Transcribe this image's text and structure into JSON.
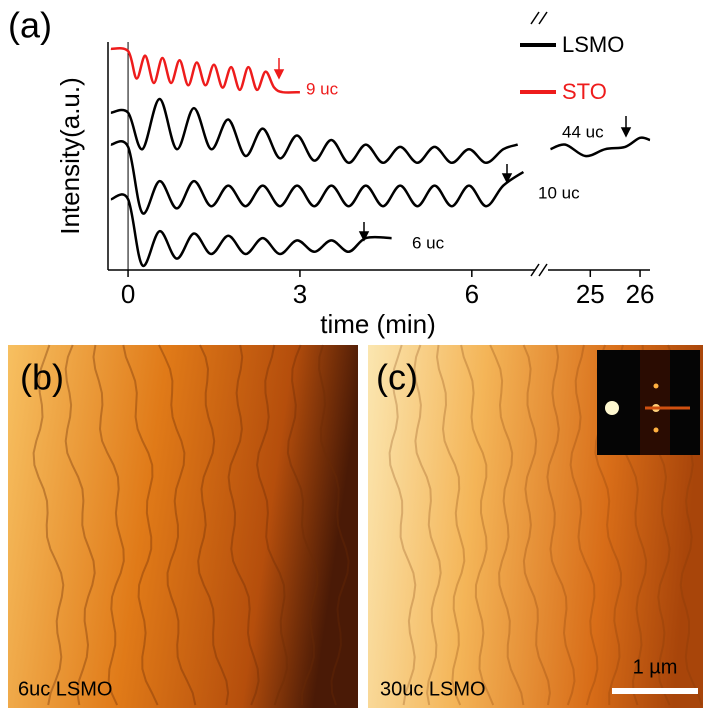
{
  "panel_label": "(a)",
  "chart_data": {
    "type": "line",
    "ylabel": "Intensity(a.u.)",
    "xlabel": "time (min)",
    "x_segments": [
      [
        -0.35,
        7.19
      ],
      [
        24.15,
        26.2
      ]
    ],
    "xticks": [
      0,
      3,
      6,
      25,
      26
    ],
    "ylim": [
      0,
      100
    ],
    "legend": [
      {
        "name": "LSMO",
        "color": "#000000"
      },
      {
        "name": "STO",
        "color": "#ee1c1c"
      }
    ],
    "series": [
      {
        "label": "9 uc",
        "color": "#ee1c1c",
        "x": [
          -0.3,
          0,
          0.15,
          0.3,
          0.45,
          0.6,
          0.75,
          0.9,
          1.05,
          1.2,
          1.35,
          1.5,
          1.65,
          1.8,
          1.95,
          2.1,
          2.25,
          2.4,
          2.55,
          2.7,
          3.0
        ],
        "values": [
          97,
          96,
          84,
          94,
          82,
          93,
          82,
          92,
          81,
          91,
          81,
          90,
          80,
          89,
          79,
          89,
          79,
          87,
          80,
          78,
          78
        ]
      },
      {
        "label": "44 uc",
        "color": "#000000",
        "x": [
          -0.3,
          0,
          0.25,
          0.55,
          0.85,
          1.15,
          1.45,
          1.75,
          2.05,
          2.35,
          2.65,
          2.95,
          3.25,
          3.55,
          3.85,
          4.15,
          4.45,
          4.75,
          5.05,
          5.35,
          5.65,
          5.95,
          6.25,
          6.55,
          6.8,
          null,
          24.2,
          24.5,
          24.9,
          25.3,
          25.7,
          26.0,
          26.2
        ],
        "values": [
          69,
          69,
          53,
          75,
          53,
          71,
          53,
          66,
          50,
          62,
          49,
          59,
          48,
          57,
          47,
          55,
          47,
          54,
          47,
          54,
          47,
          53,
          47,
          53,
          55,
          null,
          53,
          55,
          50,
          53,
          54,
          58,
          57
        ]
      },
      {
        "label": "10 uc",
        "color": "#000000",
        "x": [
          -0.3,
          0,
          0.25,
          0.55,
          0.85,
          1.15,
          1.45,
          1.75,
          2.05,
          2.35,
          2.65,
          2.95,
          3.25,
          3.55,
          3.85,
          4.15,
          4.45,
          4.75,
          5.05,
          5.35,
          5.65,
          5.95,
          6.25,
          6.55,
          6.9
        ],
        "values": [
          55,
          54,
          25,
          39,
          27,
          39,
          28,
          37,
          28,
          37,
          28,
          37,
          28,
          37,
          28,
          37,
          28,
          37,
          28,
          37,
          28,
          37,
          28,
          37,
          43
        ]
      },
      {
        "label": "6 uc",
        "color": "#000000",
        "x": [
          -0.3,
          0,
          0.25,
          0.55,
          0.85,
          1.15,
          1.45,
          1.75,
          2.05,
          2.35,
          2.65,
          2.95,
          3.25,
          3.55,
          3.85,
          4.15,
          4.6
        ],
        "values": [
          31,
          31,
          2,
          17,
          5,
          16,
          7,
          15,
          7,
          14,
          7,
          13,
          8,
          13,
          8,
          14,
          14
        ]
      }
    ]
  },
  "afm": [
    {
      "panel_label": "(b)",
      "caption": "6uc LSMO"
    },
    {
      "panel_label": "(c)",
      "caption": "30uc LSMO",
      "scale_bar": "1 µm"
    }
  ]
}
